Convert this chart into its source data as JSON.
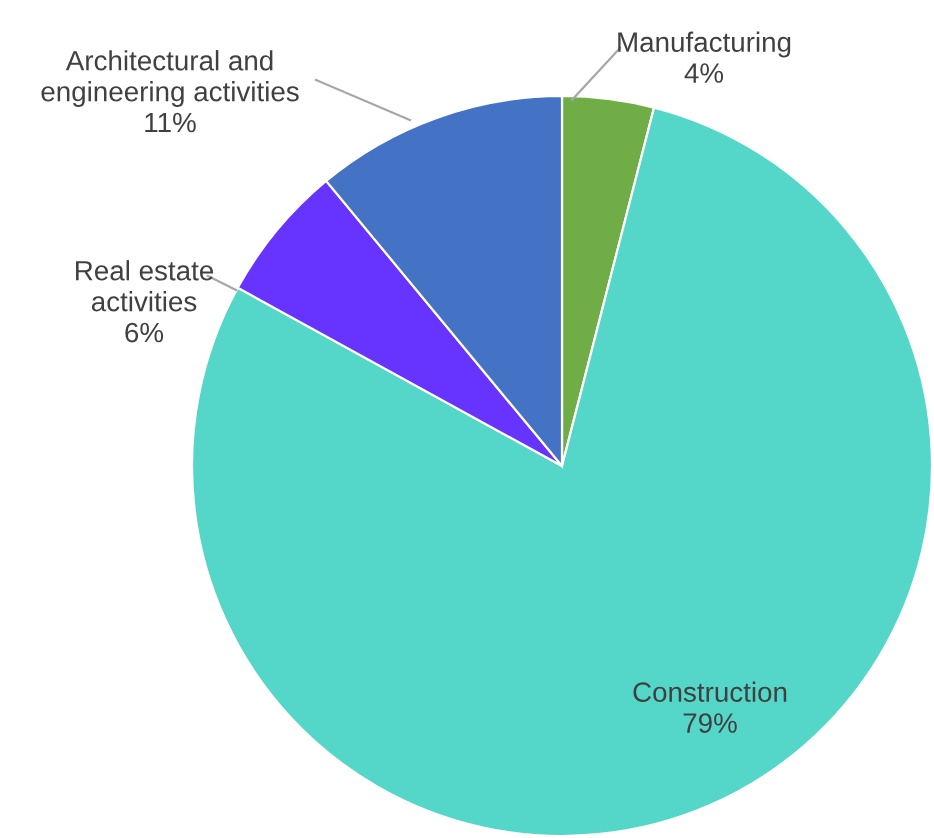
{
  "chart_data": {
    "type": "pie",
    "categories": [
      "Manufacturing",
      "Construction",
      "Real estate\nactivities",
      "Architectural and\nengineering activities"
    ],
    "values": [
      4,
      79,
      6,
      11
    ],
    "colors": [
      "#70ad47",
      "#54d6c8",
      "#6633ff",
      "#4472c4"
    ],
    "value_labels": [
      "4%",
      "79%",
      "6%",
      "11%"
    ]
  }
}
